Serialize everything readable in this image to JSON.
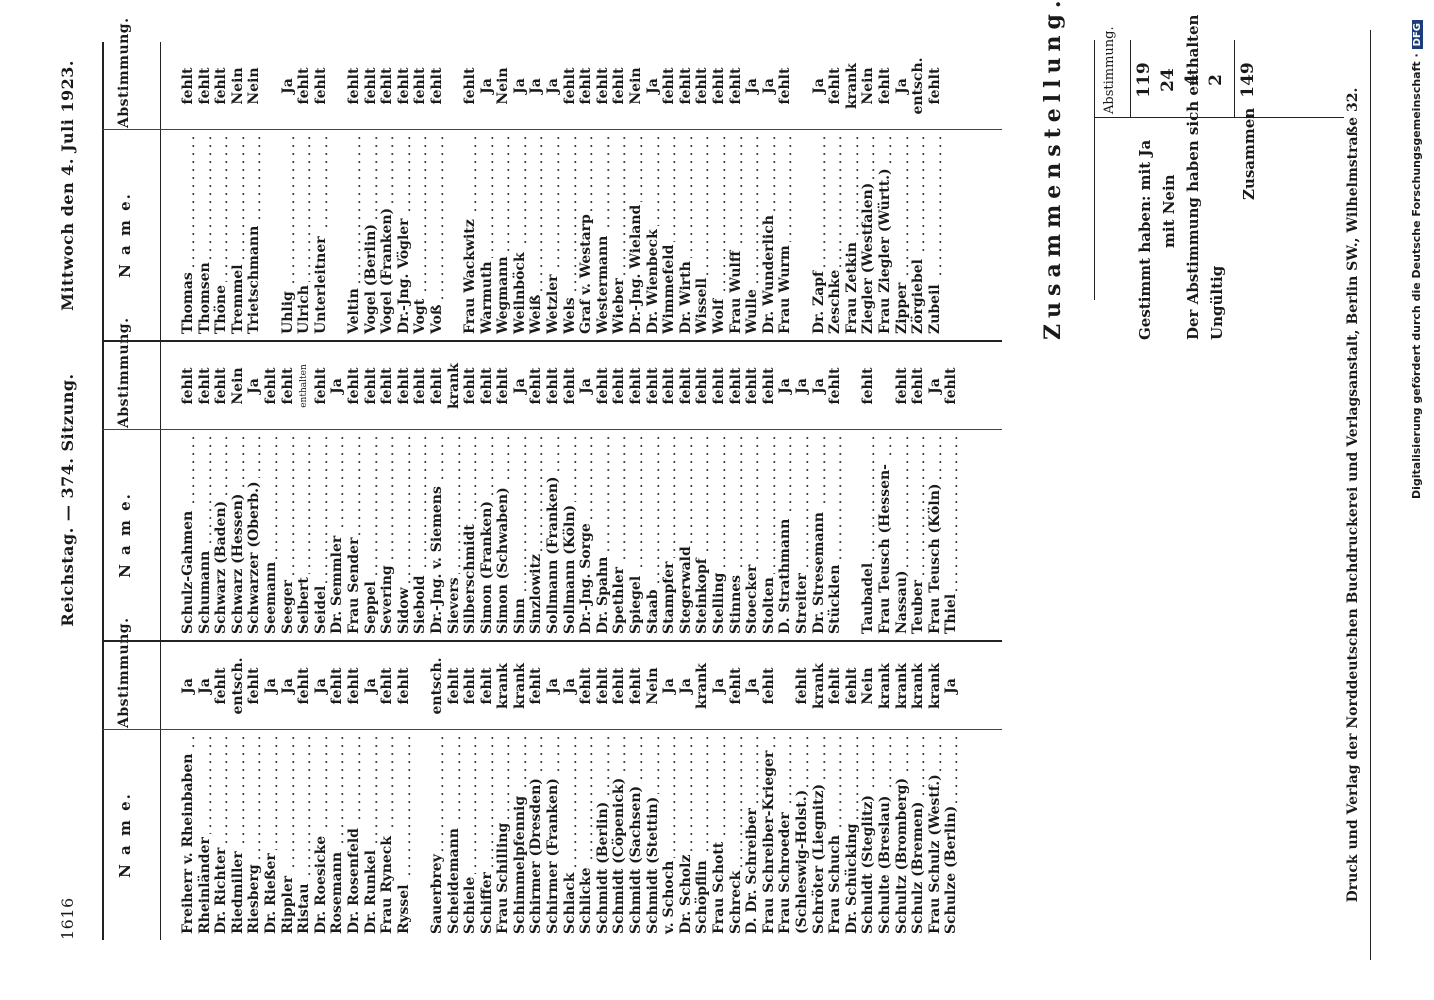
{
  "header": {
    "page_number": "1616",
    "title": "Reichstag. — 374. Sitzung.",
    "date": "Mittwoch den 4. Juli 1923."
  },
  "table_headers": {
    "name": "N a m e.",
    "vote": "Abstimmung."
  },
  "columns": [
    {
      "rows": [
        {
          "name": "Freiherr v. Rheinbaben",
          "vote": "Ja"
        },
        {
          "name": "Rheinländer",
          "vote": "Ja"
        },
        {
          "name": "Dr. Richter",
          "vote": "fehlt"
        },
        {
          "name": "Riedmiller",
          "vote": "entsch."
        },
        {
          "name": "Riesberg",
          "vote": "fehlt"
        },
        {
          "name": "Dr. Rießer",
          "vote": "Ja"
        },
        {
          "name": "Rippler",
          "vote": "Ja"
        },
        {
          "name": "Ristau",
          "vote": "fehlt"
        },
        {
          "name": "Dr. Roesicke",
          "vote": "Ja"
        },
        {
          "name": "Rosemann",
          "vote": "fehlt"
        },
        {
          "name": "Dr. Rosenfeld",
          "vote": "fehlt"
        },
        {
          "name": "Dr. Runkel",
          "vote": "Ja"
        },
        {
          "name": "Frau Ryneck",
          "vote": "fehlt"
        },
        {
          "name": "Ryssel",
          "vote": "fehlt"
        },
        {
          "name": "",
          "vote": ""
        },
        {
          "name": "Sauerbrey",
          "vote": "entsch."
        },
        {
          "name": "Scheidemann",
          "vote": "fehlt"
        },
        {
          "name": "Schiele",
          "vote": "fehlt"
        },
        {
          "name": "Schiffer",
          "vote": "fehlt"
        },
        {
          "name": "Frau Schilling",
          "vote": "krank"
        },
        {
          "name": "Schimmelpfennig",
          "vote": "krank"
        },
        {
          "name": "Schirmer (Dresden)",
          "vote": "fehlt"
        },
        {
          "name": "Schirmer (Franken)",
          "vote": "Ja"
        },
        {
          "name": "Schlack",
          "vote": "Ja"
        },
        {
          "name": "Schlicke",
          "vote": "fehlt"
        },
        {
          "name": "Schmidt (Berlin)",
          "vote": "fehlt"
        },
        {
          "name": "Schmidt (Cöpenick)",
          "vote": "fehlt"
        },
        {
          "name": "Schmidt (Sachsen)",
          "vote": "fehlt"
        },
        {
          "name": "Schmidt (Stettin)",
          "vote": "Nein"
        },
        {
          "name": "v. Schoch",
          "vote": "Ja"
        },
        {
          "name": "Dr. Scholz",
          "vote": "Ja"
        },
        {
          "name": "Schöpflin",
          "vote": "krank"
        },
        {
          "name": "Frau Schott",
          "vote": "Ja"
        },
        {
          "name": "Schreck",
          "vote": "fehlt"
        },
        {
          "name": "D. Dr. Schreiber",
          "vote": "Ja"
        },
        {
          "name": "Frau Schreiber-Krieger",
          "vote": "fehlt"
        },
        {
          "name": "Frau Schroeder",
          "vote": ""
        },
        {
          "name": "  (Schleswig-Holst.)",
          "vote": "fehlt"
        },
        {
          "name": "Schröter (Liegnitz)",
          "vote": "krank"
        },
        {
          "name": "Frau Schuch",
          "vote": "fehlt"
        },
        {
          "name": "Dr. Schücking",
          "vote": "fehlt"
        },
        {
          "name": "Schuldt (Steglitz)",
          "vote": "Nein"
        },
        {
          "name": "Schulte (Breslau)",
          "vote": "krank"
        },
        {
          "name": "Schultz (Bromberg)",
          "vote": "krank"
        },
        {
          "name": "Schulz (Bremen)",
          "vote": "krank"
        },
        {
          "name": "Frau Schulz (Westf.)",
          "vote": "krank"
        },
        {
          "name": "Schulze (Berlin)",
          "vote": "Ja"
        }
      ]
    },
    {
      "rows": [
        {
          "name": "Schulz-Gahmen",
          "vote": "fehlt"
        },
        {
          "name": "Schumann",
          "vote": "fehlt"
        },
        {
          "name": "Schwarz (Baden)",
          "vote": "fehlt"
        },
        {
          "name": "Schwarz (Hessen)",
          "vote": "Nein"
        },
        {
          "name": "Schwarzer (Oberb.)",
          "vote": "Ja"
        },
        {
          "name": "Seemann",
          "vote": "fehlt"
        },
        {
          "name": "Seeger",
          "vote": "fehlt"
        },
        {
          "name": "Seibert",
          "vote": "enthalten"
        },
        {
          "name": "Seidel",
          "vote": "fehlt"
        },
        {
          "name": "Dr. Semmler",
          "vote": "Ja"
        },
        {
          "name": "Frau Sender",
          "vote": "fehlt"
        },
        {
          "name": "Seppel",
          "vote": "fehlt"
        },
        {
          "name": "Severing",
          "vote": "fehlt"
        },
        {
          "name": "Sidow",
          "vote": "fehlt"
        },
        {
          "name": "Siebold",
          "vote": "fehlt"
        },
        {
          "name": "Dr.-Jng. v. Siemens",
          "vote": "fehlt"
        },
        {
          "name": "Sievers",
          "vote": "krank"
        },
        {
          "name": "Silberschmidt",
          "vote": "fehlt"
        },
        {
          "name": "Simon (Franken)",
          "vote": "fehlt"
        },
        {
          "name": "Simon (Schwaben)",
          "vote": "fehlt"
        },
        {
          "name": "Sinn",
          "vote": "Ja"
        },
        {
          "name": "Sinzlowitz",
          "vote": "fehlt"
        },
        {
          "name": "Sollmann (Franken)",
          "vote": "fehlt"
        },
        {
          "name": "Sollmann (Köln)",
          "vote": "fehlt"
        },
        {
          "name": "Dr.-Jng. Sorge",
          "vote": "Ja"
        },
        {
          "name": "Dr. Spahn",
          "vote": "fehlt"
        },
        {
          "name": "Spethler",
          "vote": "fehlt"
        },
        {
          "name": "Spiegel",
          "vote": "fehlt"
        },
        {
          "name": "Staab",
          "vote": "fehlt"
        },
        {
          "name": "Stampfer",
          "vote": "fehlt"
        },
        {
          "name": "Stegerwald",
          "vote": "fehlt"
        },
        {
          "name": "Steinkopf",
          "vote": "fehlt"
        },
        {
          "name": "Stelling",
          "vote": "fehlt"
        },
        {
          "name": "Stinnes",
          "vote": "fehlt"
        },
        {
          "name": "Stoecker",
          "vote": "fehlt"
        },
        {
          "name": "Stolten",
          "vote": "fehlt"
        },
        {
          "name": "D. Strathmann",
          "vote": "Ja"
        },
        {
          "name": "Streiter",
          "vote": "Ja"
        },
        {
          "name": "Dr. Stresemann",
          "vote": "Ja"
        },
        {
          "name": "Stücklen",
          "vote": "fehlt"
        },
        {
          "name": "",
          "vote": ""
        },
        {
          "name": "Taubadel",
          "vote": "fehlt"
        },
        {
          "name": "Frau Teusch (Hessen-",
          "vote": ""
        },
        {
          "name": "  Nassau)",
          "vote": "fehlt"
        },
        {
          "name": "Teuber",
          "vote": "fehlt"
        },
        {
          "name": "Frau Teusch (Köln)",
          "vote": "Ja"
        },
        {
          "name": "Thiel",
          "vote": "fehlt"
        }
      ]
    },
    {
      "rows": [
        {
          "name": "Thomas",
          "vote": "fehlt"
        },
        {
          "name": "Thomsen",
          "vote": "fehlt"
        },
        {
          "name": "Thöne",
          "vote": "fehlt"
        },
        {
          "name": "Tremmel",
          "vote": "Nein"
        },
        {
          "name": "Trietschmann",
          "vote": "Nein"
        },
        {
          "name": "",
          "vote": ""
        },
        {
          "name": "Uhlig",
          "vote": "Ja"
        },
        {
          "name": "Ulrich",
          "vote": "fehlt"
        },
        {
          "name": "Unterleitner",
          "vote": "fehlt"
        },
        {
          "name": "",
          "vote": ""
        },
        {
          "name": "Veltin",
          "vote": "fehlt"
        },
        {
          "name": "Vogel (Berlin)",
          "vote": "fehlt"
        },
        {
          "name": "Vogel (Franken)",
          "vote": "fehlt"
        },
        {
          "name": "Dr.-Jng. Vögler",
          "vote": "fehlt"
        },
        {
          "name": "Vogt",
          "vote": "fehlt"
        },
        {
          "name": "Voß",
          "vote": "fehlt"
        },
        {
          "name": "",
          "vote": ""
        },
        {
          "name": "Frau Wackwitz",
          "vote": "fehlt"
        },
        {
          "name": "Warmuth",
          "vote": "Ja"
        },
        {
          "name": "Wegmann",
          "vote": "Nein"
        },
        {
          "name": "Weilnböck",
          "vote": "Ja"
        },
        {
          "name": "Weiß",
          "vote": "Ja"
        },
        {
          "name": "Wetzler",
          "vote": "Ja"
        },
        {
          "name": "Wels",
          "vote": "fehlt"
        },
        {
          "name": "Graf v. Westarp",
          "vote": "fehlt"
        },
        {
          "name": "Westermann",
          "vote": "fehlt"
        },
        {
          "name": "Wieber",
          "vote": "fehlt"
        },
        {
          "name": "Dr.-Jng. Wieland",
          "vote": "Nein"
        },
        {
          "name": "Dr. Wienbeck",
          "vote": "Ja"
        },
        {
          "name": "Wimmefeld",
          "vote": "fehlt"
        },
        {
          "name": "Dr. Wirth",
          "vote": "fehlt"
        },
        {
          "name": "Wissell",
          "vote": "fehlt"
        },
        {
          "name": "Wolf",
          "vote": "fehlt"
        },
        {
          "name": "Frau Wulff",
          "vote": "fehlt"
        },
        {
          "name": "Wulle",
          "vote": "Ja"
        },
        {
          "name": "Dr. Wunderlich",
          "vote": "Ja"
        },
        {
          "name": "Frau Wurm",
          "vote": "fehlt"
        },
        {
          "name": "",
          "vote": ""
        },
        {
          "name": "Dr. Zapf",
          "vote": "Ja"
        },
        {
          "name": "Zeschke",
          "vote": "fehlt"
        },
        {
          "name": "Frau Zetkin",
          "vote": "krank"
        },
        {
          "name": "Ziegler (Westfalen)",
          "vote": "Nein"
        },
        {
          "name": "Frau Ziegler (Württ.)",
          "vote": "fehlt"
        },
        {
          "name": "Zipper",
          "vote": "Ja"
        },
        {
          "name": "Zörgiebel",
          "vote": "entsch."
        },
        {
          "name": "Zubeil",
          "vote": "fehlt"
        }
      ]
    }
  ],
  "summary": {
    "title": "Zusammenstellung.",
    "column_header": "Abstimmung.",
    "rows": [
      {
        "label": "Gestimmt haben: mit Ja",
        "value": "119"
      },
      {
        "label": "mit Nein",
        "value": "24"
      },
      {
        "label": "Der Abstimmung haben sich enthalten",
        "value": "4"
      },
      {
        "label": "Ungültig",
        "value": "2"
      }
    ],
    "total_label": "Zusammen",
    "total_value": "149"
  },
  "footer": {
    "printer": "Druck und Verlag der Norddeutschen Buchdruckerei und Verlagsanstalt, Berlin SW., Wilhelmstraße 32.",
    "digitization": "Digitalisierung gefördert durch die Deutsche Forschungsgemeinschaft ·",
    "dfg_logo": "DFG"
  }
}
